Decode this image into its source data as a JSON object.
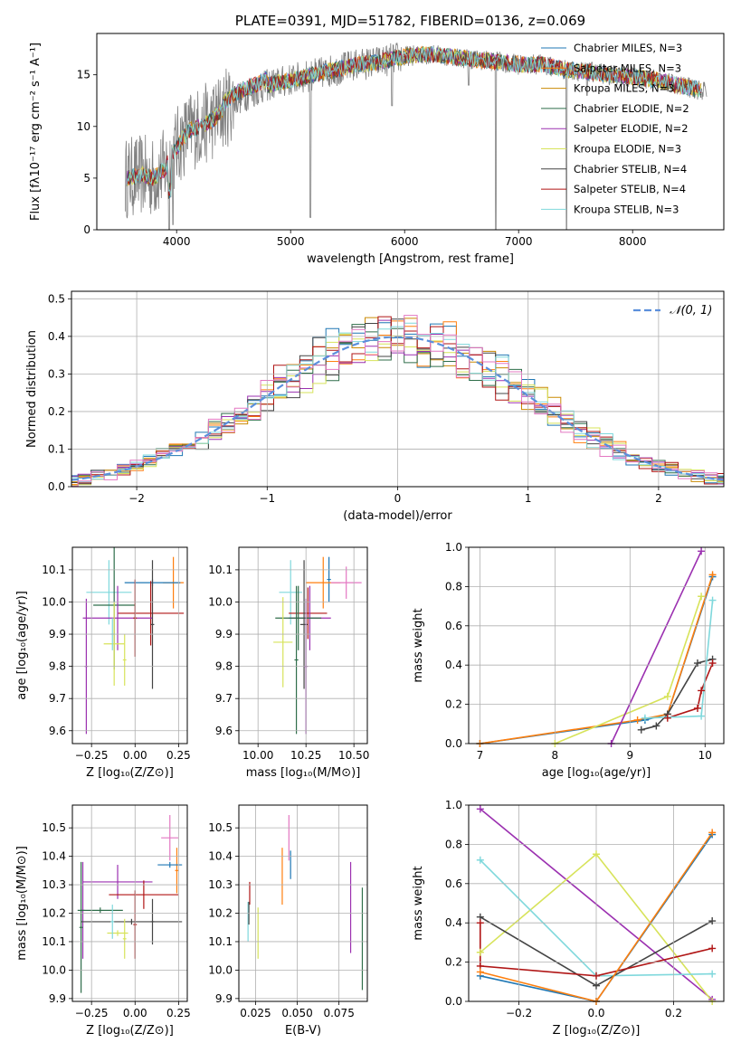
{
  "chart_data": [
    {
      "type": "line",
      "title": "PLATE=0391, MJD=51782, FIBERID=0136, z=0.069",
      "xlabel": "wavelength [Angstrom, rest frame]",
      "ylabel": "Flux [fλ10⁻¹⁷ erg cm⁻² s⁻¹ A⁻¹]",
      "xlim": [
        3300,
        8800
      ],
      "ylim": [
        0,
        19
      ],
      "xticks": [
        4000,
        5000,
        6000,
        7000,
        8000
      ],
      "yticks": [
        0,
        5,
        10,
        15
      ],
      "x_tick_labels": [
        "4000",
        "5000",
        "6000",
        "7000",
        "8000"
      ],
      "y_tick_labels": [
        "0",
        "5",
        "10",
        "15"
      ],
      "grid": false,
      "legend_position": "top-right",
      "data_color": "#808080",
      "continuum": {
        "x": [
          3550,
          3700,
          3800,
          3900,
          4000,
          4100,
          4200,
          4300,
          4400,
          4500,
          4600,
          4800,
          5000,
          5200,
          5400,
          5600,
          5800,
          6000,
          6200,
          6400,
          6600,
          6800,
          7000,
          7200,
          7400,
          7600,
          7800,
          8000,
          8200,
          8400,
          8600
        ],
        "y": [
          5.0,
          5.3,
          5.0,
          6.0,
          8.0,
          9.5,
          10.0,
          10.5,
          11.5,
          12.5,
          13.0,
          14.0,
          14.5,
          15.0,
          15.5,
          16.0,
          16.3,
          16.8,
          17.0,
          16.8,
          16.5,
          16.3,
          16.0,
          16.0,
          15.5,
          15.3,
          15.0,
          14.8,
          14.5,
          14.0,
          13.5
        ]
      },
      "features": [
        {
          "x": 3933,
          "y": 0.0
        },
        {
          "x": 3968,
          "y": 0.5
        },
        {
          "x": 5175,
          "y": 1.2
        },
        {
          "x": 5890,
          "y": 12.0
        },
        {
          "x": 6563,
          "y": 14.0
        },
        {
          "x": 6800,
          "y": 0.0
        },
        {
          "x": 7420,
          "y": 0.0
        },
        {
          "x": 7600,
          "y": 13.0
        }
      ],
      "series": [
        {
          "name": "Chabrier MILES, N_SSP=3",
          "color": "#1f77b4"
        },
        {
          "name": "Salpeter MILES, N_SSP=3",
          "color": "#ff7f0e"
        },
        {
          "name": "Kroupa MILES, N_SSP=3",
          "color": "#ca8a04"
        },
        {
          "name": "Chabrier ELODIE, N_SSP=2",
          "color": "#2f6e4a"
        },
        {
          "name": "Salpeter ELODIE, N_SSP=2",
          "color": "#9b30b0"
        },
        {
          "name": "Kroupa ELODIE, N_SSP=3",
          "color": "#d7e35a"
        },
        {
          "name": "Chabrier STELIB, N_SSP=4",
          "color": "#444444"
        },
        {
          "name": "Salpeter STELIB, N_SSP=4",
          "color": "#b01515"
        },
        {
          "name": "Kroupa STELIB, N_SSP=3",
          "color": "#7fd8dc"
        }
      ]
    },
    {
      "type": "line",
      "xlabel": "(data-model)/error",
      "ylabel": "Normed distribution",
      "xlim": [
        -2.5,
        2.5
      ],
      "ylim": [
        0,
        0.52
      ],
      "xticks": [
        -2,
        -1,
        0,
        1,
        2
      ],
      "yticks": [
        0.0,
        0.1,
        0.2,
        0.3,
        0.4,
        0.5
      ],
      "x_tick_labels": [
        "−2",
        "−1",
        "0",
        "1",
        "2"
      ],
      "y_tick_labels": [
        "0.0",
        "0.1",
        "0.2",
        "0.3",
        "0.4",
        "0.5"
      ],
      "grid": true,
      "legend_position": "top-right",
      "gaussian": {
        "label": "𝒩(0, 1)",
        "color": "#5b8fdc",
        "mu": 0,
        "sigma": 1
      },
      "bin_width": 0.1,
      "hist_colors": [
        "#1f77b4",
        "#ff7f0e",
        "#ca8a04",
        "#2f6e4a",
        "#9b30b0",
        "#d7e35a",
        "#444444",
        "#b01515",
        "#7fd8dc",
        "#e377c2"
      ]
    },
    {
      "type": "scatter",
      "xlabel": "Z [log₁₀(Z/Z⊙)]",
      "ylabel": "age  [log₁₀(age/yr)]",
      "xlim": [
        -0.36,
        0.3
      ],
      "ylim": [
        9.56,
        10.17
      ],
      "xticks": [
        -0.25,
        0.0,
        0.25
      ],
      "yticks": [
        9.6,
        9.7,
        9.8,
        9.9,
        10.0,
        10.1
      ],
      "x_tick_labels": [
        "−0.25",
        "0.00",
        "0.25"
      ],
      "y_tick_labels": [
        "9.6",
        "9.7",
        "9.8",
        "9.9",
        "10.0",
        "10.1"
      ],
      "grid": true,
      "points": [
        {
          "x": 0.22,
          "xerr": 0.06,
          "y": 10.06,
          "yerr": 0.08,
          "color": "#ff7f0e"
        },
        {
          "x": 0.1,
          "xerr": 0.16,
          "y": 10.06,
          "yerr": 0.01,
          "color": "#1f77b4"
        },
        {
          "x": -0.15,
          "xerr": 0.13,
          "y": 10.03,
          "yerr": 0.1,
          "color": "#7fd8dc"
        },
        {
          "x": 0.09,
          "xerr": 0.19,
          "y": 9.965,
          "yerr": 0.1,
          "color": "#b01515"
        },
        {
          "x": -0.12,
          "xerr": 0.12,
          "y": 9.99,
          "yerr": 0.2,
          "color": "#2f6e4a"
        },
        {
          "x": -0.1,
          "xerr": 0.2,
          "y": 9.95,
          "yerr": 0.1,
          "color": "#9b30b0"
        },
        {
          "x": -0.28,
          "xerr": 0.01,
          "y": 9.8,
          "yerr": 0.21,
          "color": "#9b30b0"
        },
        {
          "x": 0.1,
          "xerr": 0.01,
          "y": 9.93,
          "yerr": 0.2,
          "color": "#444444"
        },
        {
          "x": -0.0,
          "xerr": 0.01,
          "y": 9.95,
          "yerr": 0.12,
          "color": "#b01515"
        },
        {
          "x": -0.12,
          "xerr": 0.06,
          "y": 9.87,
          "yerr": 0.13,
          "color": "#d7e35a"
        },
        {
          "x": -0.06,
          "xerr": 0.01,
          "y": 9.82,
          "yerr": 0.08,
          "color": "#d7e35a"
        },
        {
          "x": -0.13,
          "xerr": 0.01,
          "y": 9.9,
          "yerr": 0.05,
          "color": "#7fd8dc"
        }
      ]
    },
    {
      "type": "scatter",
      "xlabel": "mass [log₁₀(M/M⊙)]",
      "xlim": [
        9.9,
        10.57
      ],
      "ylim": [
        9.56,
        10.17
      ],
      "xticks": [
        10.0,
        10.25,
        10.5
      ],
      "yticks": [
        9.6,
        9.7,
        9.8,
        9.9,
        10.0,
        10.1
      ],
      "x_tick_labels": [
        "10.00",
        "10.25",
        "10.50"
      ],
      "y_tick_labels": [
        "9.6",
        "9.7",
        "9.8",
        "9.9",
        "10.0",
        "10.1"
      ],
      "grid": true,
      "points": [
        {
          "x": 10.37,
          "xerr": 0.01,
          "y": 10.07,
          "yerr": 0.07,
          "color": "#1f77b4"
        },
        {
          "x": 10.34,
          "xerr": 0.09,
          "y": 10.06,
          "yerr": 0.08,
          "color": "#ff7f0e"
        },
        {
          "x": 10.46,
          "xerr": 0.08,
          "y": 10.06,
          "yerr": 0.05,
          "color": "#e377c2"
        },
        {
          "x": 10.17,
          "xerr": 0.06,
          "y": 10.03,
          "yerr": 0.1,
          "color": "#7fd8dc"
        },
        {
          "x": 10.26,
          "xerr": 0.1,
          "y": 9.965,
          "yerr": 0.08,
          "color": "#b01515"
        },
        {
          "x": 10.27,
          "xerr": 0.11,
          "y": 9.95,
          "yerr": 0.1,
          "color": "#9b30b0"
        },
        {
          "x": 10.21,
          "xerr": 0.12,
          "y": 9.95,
          "yerr": 0.1,
          "color": "#2f6e4a"
        },
        {
          "x": 10.24,
          "xerr": 0.02,
          "y": 9.93,
          "yerr": 0.2,
          "color": "#444444"
        },
        {
          "x": 10.13,
          "xerr": 0.05,
          "y": 9.875,
          "yerr": 0.14,
          "color": "#d7e35a"
        },
        {
          "x": 10.25,
          "xerr": 0.01,
          "y": 9.8,
          "yerr": 0.21,
          "color": "#9b30b0"
        },
        {
          "x": 10.2,
          "xerr": 0.01,
          "y": 9.82,
          "yerr": 0.23,
          "color": "#2f6e4a"
        }
      ]
    },
    {
      "type": "line",
      "xlabel": "age  [log₁₀(age/yr)]",
      "ylabel": "mass weight",
      "xlim": [
        6.85,
        10.25
      ],
      "ylim": [
        0,
        1.0
      ],
      "xticks": [
        7,
        8,
        9,
        10
      ],
      "yticks": [
        0.0,
        0.2,
        0.4,
        0.6,
        0.8,
        1.0
      ],
      "x_tick_labels": [
        "7",
        "8",
        "9",
        "10"
      ],
      "y_tick_labels": [
        "0.0",
        "0.2",
        "0.4",
        "0.6",
        "0.8",
        "1.0"
      ],
      "grid": true,
      "series": [
        {
          "color": "#1f77b4",
          "x": [
            7.0,
            9.2,
            9.5,
            10.1
          ],
          "y": [
            0.0,
            0.12,
            0.15,
            0.85
          ]
        },
        {
          "color": "#ff7f0e",
          "x": [
            7.0,
            9.1,
            9.5,
            10.1
          ],
          "y": [
            0.0,
            0.12,
            0.15,
            0.86
          ]
        },
        {
          "color": "#d7e35a",
          "x": [
            8.0,
            9.5,
            9.95
          ],
          "y": [
            0.0,
            0.24,
            0.75
          ]
        },
        {
          "color": "#9b30b0",
          "x": [
            8.75,
            9.95
          ],
          "y": [
            0.0,
            0.98
          ]
        },
        {
          "color": "#444444",
          "x": [
            9.15,
            9.35,
            9.5,
            9.9,
            10.1
          ],
          "y": [
            0.07,
            0.09,
            0.15,
            0.41,
            0.43
          ]
        },
        {
          "color": "#b01515",
          "x": [
            9.5,
            9.9,
            9.95,
            10.1
          ],
          "y": [
            0.13,
            0.18,
            0.27,
            0.41
          ]
        },
        {
          "color": "#7fd8dc",
          "x": [
            9.2,
            9.95,
            10.1
          ],
          "y": [
            0.13,
            0.14,
            0.73
          ]
        }
      ]
    },
    {
      "type": "scatter",
      "xlabel": "Z [log₁₀(Z/Z⊙)]",
      "ylabel": "mass [log₁₀(M/M⊙)]",
      "xlim": [
        -0.36,
        0.3
      ],
      "ylim": [
        9.89,
        10.58
      ],
      "xticks": [
        -0.25,
        0.0,
        0.25
      ],
      "yticks": [
        9.9,
        10.0,
        10.1,
        10.2,
        10.3,
        10.4,
        10.5
      ],
      "x_tick_labels": [
        "−0.25",
        "0.00",
        "0.25"
      ],
      "y_tick_labels": [
        "9.9",
        "10.0",
        "10.1",
        "10.2",
        "10.3",
        "10.4",
        "10.5"
      ],
      "grid": true,
      "points": [
        {
          "x": 0.2,
          "xerr": 0.05,
          "y": 10.465,
          "yerr": 0.08,
          "color": "#e377c2"
        },
        {
          "x": 0.24,
          "xerr": 0.01,
          "y": 10.35,
          "yerr": 0.08,
          "color": "#ff7f0e"
        },
        {
          "x": 0.2,
          "xerr": 0.07,
          "y": 10.37,
          "yerr": 0.01,
          "color": "#1f77b4"
        },
        {
          "x": -0.1,
          "xerr": 0.2,
          "y": 10.31,
          "yerr": 0.06,
          "color": "#9b30b0"
        },
        {
          "x": 0.05,
          "xerr": 0.2,
          "y": 10.265,
          "yerr": 0.05,
          "color": "#b01515"
        },
        {
          "x": -0.3,
          "xerr": 0.01,
          "y": 10.21,
          "yerr": 0.17,
          "color": "#9b30b0"
        },
        {
          "x": -0.2,
          "xerr": 0.13,
          "y": 10.21,
          "yerr": 0.01,
          "color": "#2f6e4a"
        },
        {
          "x": -0.31,
          "xerr": 0.01,
          "y": 10.15,
          "yerr": 0.23,
          "color": "#2f6e4a"
        },
        {
          "x": 0.0,
          "xerr": 0.01,
          "y": 10.16,
          "yerr": 0.12,
          "color": "#b01515"
        },
        {
          "x": 0.1,
          "xerr": 0.01,
          "y": 10.17,
          "yerr": 0.08,
          "color": "#444444"
        },
        {
          "x": -0.02,
          "xerr": 0.29,
          "y": 10.17,
          "yerr": 0.01,
          "color": "#444444"
        },
        {
          "x": -0.1,
          "xerr": 0.06,
          "y": 10.13,
          "yerr": 0.01,
          "color": "#d7e35a"
        },
        {
          "x": -0.06,
          "xerr": 0.01,
          "y": 10.11,
          "yerr": 0.07,
          "color": "#d7e35a"
        },
        {
          "x": -0.13,
          "xerr": 0.01,
          "y": 10.17,
          "yerr": 0.06,
          "color": "#7fd8dc"
        }
      ]
    },
    {
      "type": "scatter",
      "xlabel": "E(B-V)",
      "xlim": [
        0.015,
        0.092
      ],
      "ylim": [
        9.89,
        10.58
      ],
      "xticks": [
        0.025,
        0.05,
        0.075
      ],
      "yticks": [
        9.9,
        10.0,
        10.1,
        10.2,
        10.3,
        10.4,
        10.5
      ],
      "x_tick_labels": [
        "0.025",
        "0.050",
        "0.075"
      ],
      "y_tick_labels": [
        "9.9",
        "10.0",
        "10.1",
        "10.2",
        "10.3",
        "10.4",
        "10.5"
      ],
      "grid": true,
      "points": [
        {
          "x": 0.045,
          "xerr": 0.0,
          "y": 10.465,
          "yerr": 0.08,
          "color": "#e377c2"
        },
        {
          "x": 0.041,
          "xerr": 0.0,
          "y": 10.33,
          "yerr": 0.1,
          "color": "#ff7f0e"
        },
        {
          "x": 0.046,
          "xerr": 0.0,
          "y": 10.37,
          "yerr": 0.05,
          "color": "#1f77b4"
        },
        {
          "x": 0.0215,
          "xerr": 0.0,
          "y": 10.27,
          "yerr": 0.04,
          "color": "#b01515"
        },
        {
          "x": 0.0205,
          "xerr": 0.0,
          "y": 10.17,
          "yerr": 0.07,
          "color": "#7fd8dc"
        },
        {
          "x": 0.021,
          "xerr": 0.0,
          "y": 10.2,
          "yerr": 0.04,
          "color": "#444444"
        },
        {
          "x": 0.0265,
          "xerr": 0.0,
          "y": 10.13,
          "yerr": 0.09,
          "color": "#d7e35a"
        },
        {
          "x": 0.082,
          "xerr": 0.0,
          "y": 10.22,
          "yerr": 0.16,
          "color": "#9b30b0"
        },
        {
          "x": 0.089,
          "xerr": 0.0,
          "y": 10.11,
          "yerr": 0.18,
          "color": "#2f6e4a"
        }
      ]
    },
    {
      "type": "line",
      "xlabel": "Z [log₁₀(Z/Z⊙)]",
      "ylabel": "mass weight",
      "xlim": [
        -0.33,
        0.33
      ],
      "ylim": [
        0,
        1.0
      ],
      "xticks": [
        -0.2,
        0.0,
        0.2
      ],
      "yticks": [
        0.0,
        0.2,
        0.4,
        0.6,
        0.8,
        1.0
      ],
      "x_tick_labels": [
        "−0.2",
        "0.0",
        "0.2"
      ],
      "y_tick_labels": [
        "0.0",
        "0.2",
        "0.4",
        "0.6",
        "0.8",
        "1.0"
      ],
      "grid": true,
      "series": [
        {
          "color": "#9b30b0",
          "x": [
            -0.3,
            0.3
          ],
          "y": [
            0.98,
            0.01
          ]
        },
        {
          "color": "#d7e35a",
          "x": [
            -0.3,
            0.0,
            0.3
          ],
          "y": [
            0.25,
            0.75,
            0.0
          ]
        },
        {
          "color": "#7fd8dc",
          "x": [
            -0.3,
            0.0,
            0.3
          ],
          "y": [
            0.72,
            0.13,
            0.14
          ]
        },
        {
          "color": "#444444",
          "x": [
            -0.3,
            0.0,
            0.3
          ],
          "y": [
            0.43,
            0.08,
            0.41
          ]
        },
        {
          "color": "#b01515",
          "x": [
            -0.3,
            -0.3,
            0.0,
            0.3
          ],
          "y": [
            0.4,
            0.18,
            0.13,
            0.27
          ]
        },
        {
          "color": "#1f77b4",
          "x": [
            -0.3,
            0.0,
            0.3
          ],
          "y": [
            0.13,
            0.0,
            0.85
          ]
        },
        {
          "color": "#ff7f0e",
          "x": [
            -0.3,
            0.0,
            0.3
          ],
          "y": [
            0.15,
            0.0,
            0.86
          ]
        }
      ]
    }
  ]
}
